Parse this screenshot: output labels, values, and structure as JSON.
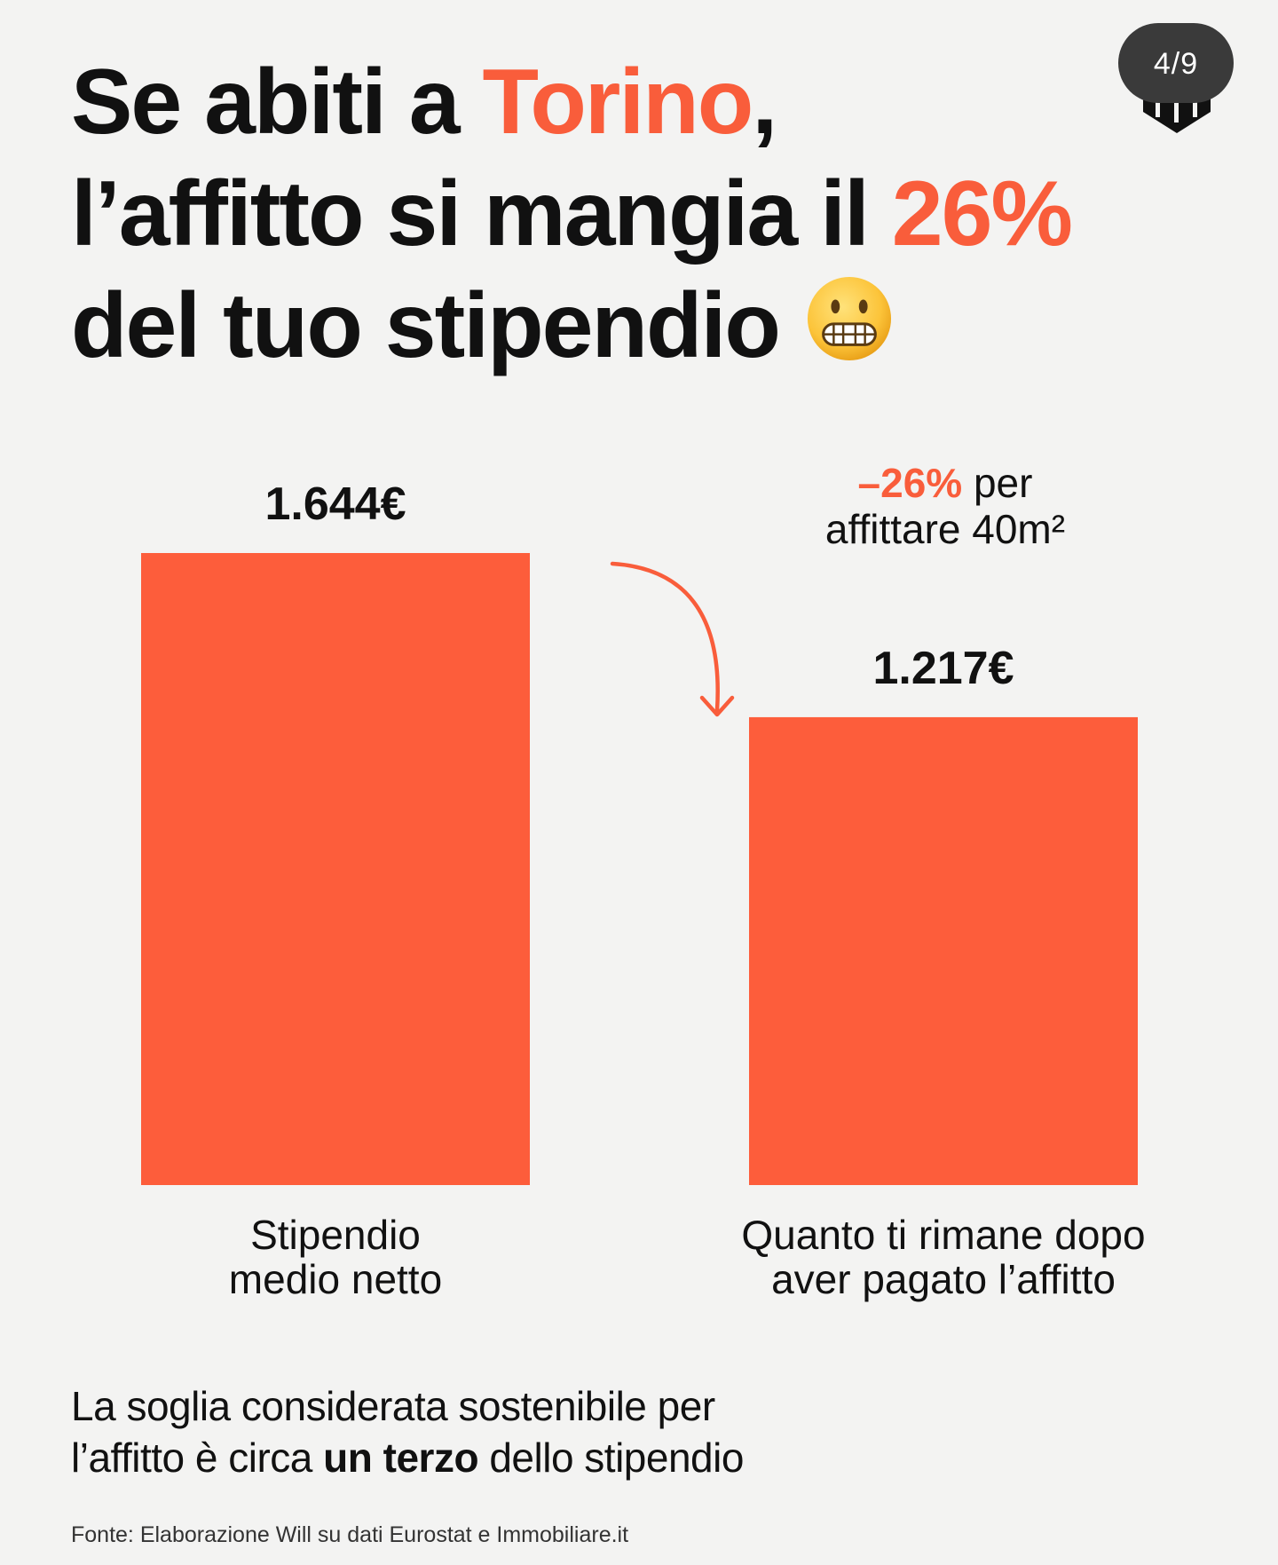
{
  "header": {
    "title_part1": "Se abiti a ",
    "title_city": "Torino",
    "title_part2": ",",
    "title_part3": "l’affitto si mangia il ",
    "title_percent": "26%",
    "title_part4": "del tuo stipendio",
    "emoji": "grimacing-face-emoji"
  },
  "badge": {
    "page_indicator": "4/9"
  },
  "logo": {
    "icon": "will-logo"
  },
  "annotation": {
    "percent": "–26%",
    "line1_rest": " per",
    "line2": "affittare 40m²",
    "arrow_icon": "curved-arrow-down-icon"
  },
  "chart_data": {
    "type": "bar",
    "categories": [
      [
        "Stipendio",
        "medio netto"
      ],
      [
        "Quanto ti rimane dopo",
        "aver pagato l’affitto"
      ]
    ],
    "values": [
      1644,
      1217
    ],
    "value_labels": [
      "1.644€",
      "1.217€"
    ],
    "unit": "€",
    "ylim": [
      0,
      1644
    ],
    "grid": false,
    "axes_visible": false,
    "bar_color": "#fd5d3b"
  },
  "footnote": {
    "part1": "La soglia considerata sostenibile per",
    "part2": "l’affitto è circa ",
    "bold": "un terzo",
    "part3": " dello stipendio"
  },
  "source": {
    "text": "Fonte: Elaborazione Will su dati Eurostat e Immobiliare.it"
  },
  "colors": {
    "accent": "#f95d3b",
    "background": "#f3f3f2",
    "text": "#111111",
    "badge_bg": "#3a3a3a"
  }
}
